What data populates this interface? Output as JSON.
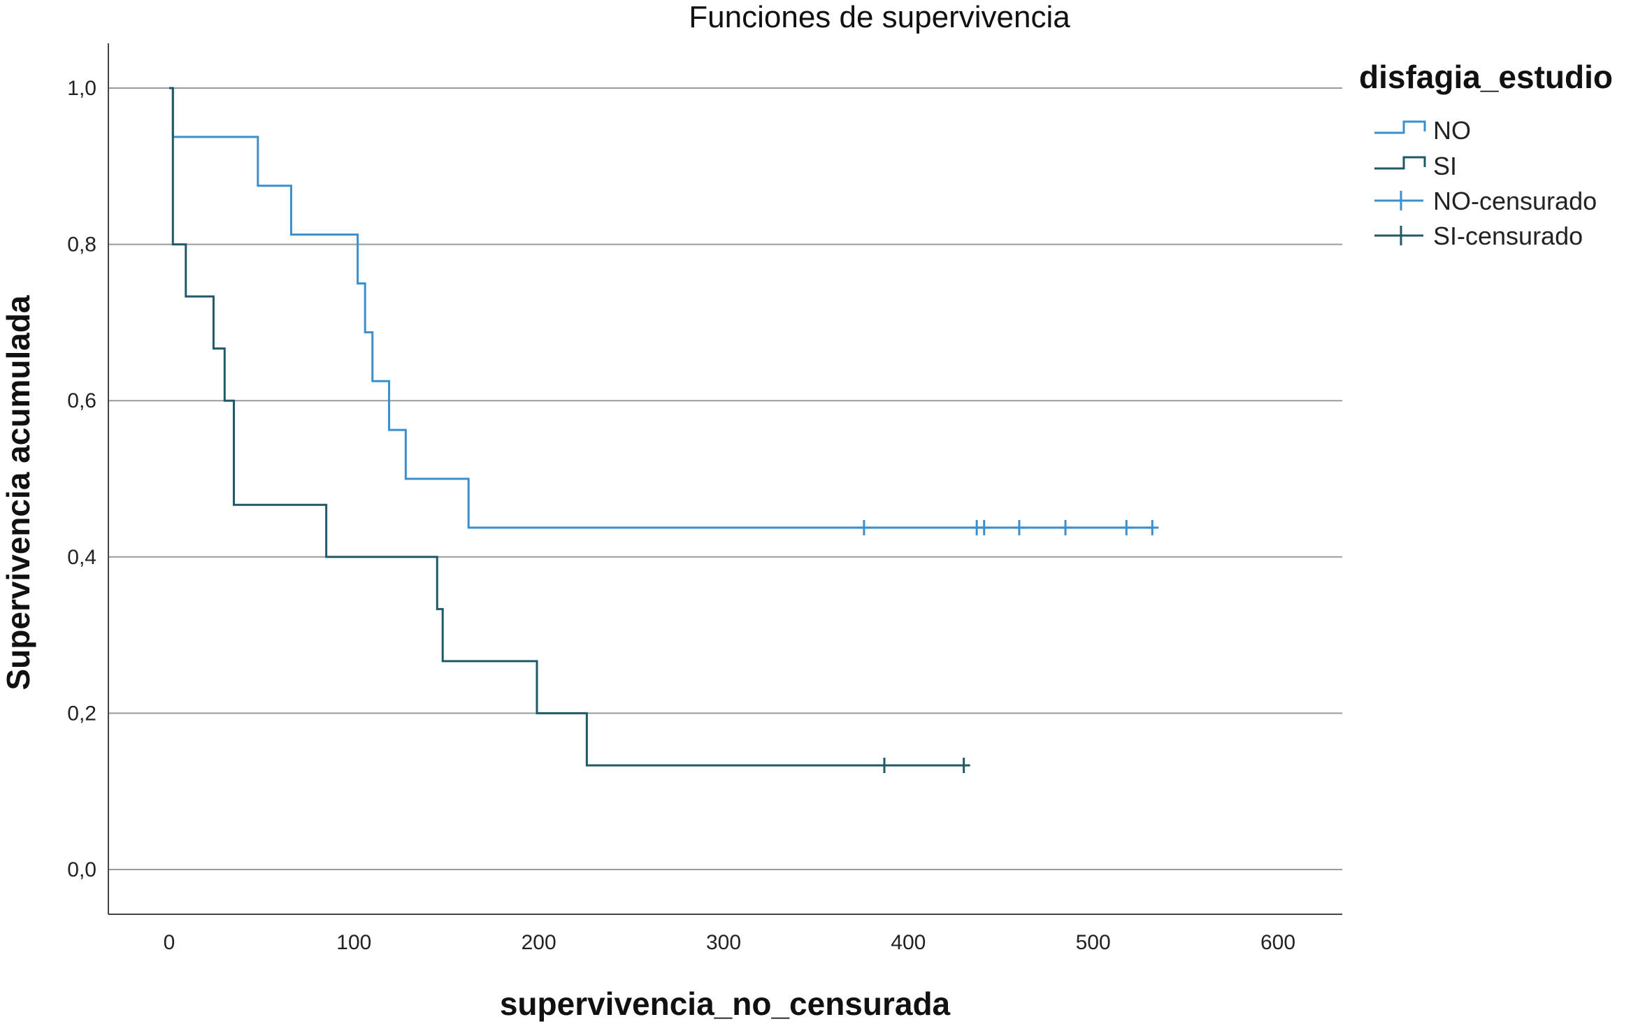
{
  "chart_data": {
    "type": "line",
    "subtype": "kaplan-meier-step",
    "title": "Funciones de supervivencia",
    "xlabel": "supervivencia_no_censurada",
    "ylabel": "Supervivencia acumulada",
    "xlim": [
      -30,
      630
    ],
    "ylim": [
      -0.06,
      1.06
    ],
    "xticks": [
      0,
      100,
      200,
      300,
      400,
      500,
      600
    ],
    "xtick_labels": [
      "0",
      "100",
      "200",
      "300",
      "400",
      "500",
      "600"
    ],
    "yticks": [
      0.0,
      0.2,
      0.4,
      0.6,
      0.8,
      1.0
    ],
    "ytick_labels": [
      "0,0",
      "0,2",
      "0,4",
      "0,6",
      "0,8",
      "1,0"
    ],
    "grid": "horizontal",
    "legend": {
      "title": "disfagia_estudio",
      "position": "right",
      "entries": [
        "NO",
        "SI",
        "NO-censurado",
        "SI-censurado"
      ]
    },
    "series": [
      {
        "name": "NO",
        "color": "#3a8fcf",
        "steps": [
          [
            0,
            1.0
          ],
          [
            2,
            0.9375
          ],
          [
            48,
            0.875
          ],
          [
            66,
            0.8125
          ],
          [
            102,
            0.75
          ],
          [
            106,
            0.6875
          ],
          [
            110,
            0.625
          ],
          [
            119,
            0.5625
          ],
          [
            128,
            0.5
          ],
          [
            162,
            0.4375
          ],
          [
            532,
            0.4375
          ]
        ],
        "censored_x": [
          376,
          437,
          441,
          460,
          485,
          518,
          532
        ],
        "censored_y": 0.4375
      },
      {
        "name": "SI",
        "color": "#1f5a66",
        "steps": [
          [
            0,
            1.0
          ],
          [
            2,
            0.8
          ],
          [
            9,
            0.7333
          ],
          [
            24,
            0.6667
          ],
          [
            30,
            0.6
          ],
          [
            35,
            0.4667
          ],
          [
            85,
            0.4
          ],
          [
            145,
            0.3333
          ],
          [
            148,
            0.2667
          ],
          [
            199,
            0.2
          ],
          [
            226,
            0.1333
          ],
          [
            430,
            0.1333
          ]
        ],
        "censored_x": [
          387,
          430
        ],
        "censored_y": 0.1333
      }
    ]
  }
}
